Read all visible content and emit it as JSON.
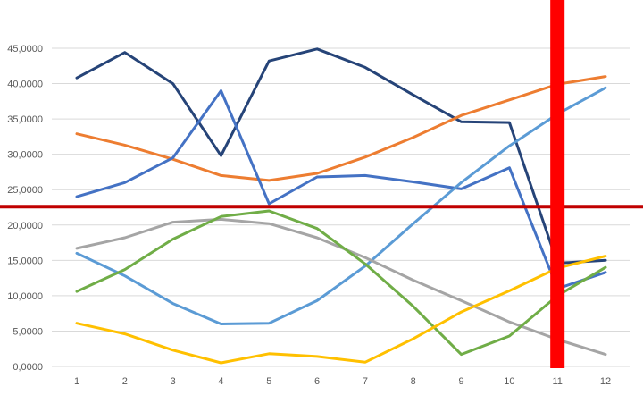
{
  "chart_data": {
    "type": "line",
    "title": "",
    "xlabel": "",
    "ylabel": "",
    "x": [
      "1",
      "2",
      "3",
      "4",
      "5",
      "6",
      "7",
      "8",
      "9",
      "10",
      "11",
      "12"
    ],
    "ylim": [
      0,
      45
    ],
    "yticks": [
      {
        "value": 0,
        "label": "0,0000"
      },
      {
        "value": 5,
        "label": "5,0000"
      },
      {
        "value": 10,
        "label": "10,0000"
      },
      {
        "value": 15,
        "label": "15,0000"
      },
      {
        "value": 20,
        "label": "20,0000"
      },
      {
        "value": 25,
        "label": "25,0000"
      },
      {
        "value": 30,
        "label": "30,0000"
      },
      {
        "value": 35,
        "label": "35,0000"
      },
      {
        "value": 40,
        "label": "40,0000"
      },
      {
        "value": 45,
        "label": "45,0000"
      }
    ],
    "grid": true,
    "legend": "none",
    "series": [
      {
        "color": "#264478",
        "values": [
          40.8,
          44.4,
          40.0,
          29.8,
          43.2,
          44.9,
          42.3,
          38.4,
          34.6,
          34.5,
          14.6,
          15.0
        ]
      },
      {
        "color": "#ED7D31",
        "values": [
          32.9,
          31.3,
          29.3,
          27.0,
          26.3,
          27.3,
          29.6,
          32.4,
          35.5,
          37.7,
          39.9,
          41.0
        ]
      },
      {
        "color": "#4472C4",
        "values": [
          24.0,
          26.0,
          29.5,
          39.0,
          23.0,
          26.8,
          27.0,
          26.1,
          25.1,
          28.1,
          11.0,
          13.3
        ]
      },
      {
        "color": "#5B9BD5",
        "values": [
          16.0,
          12.8,
          8.9,
          6.0,
          6.1,
          9.3,
          14.2,
          20.2,
          26.0,
          31.2,
          35.7,
          39.4
        ]
      },
      {
        "color": "#A5A5A5",
        "values": [
          16.7,
          18.2,
          20.4,
          20.8,
          20.2,
          18.2,
          15.4,
          12.2,
          9.3,
          6.3,
          3.8,
          1.7
        ]
      },
      {
        "color": "#70AD47",
        "values": [
          10.6,
          13.7,
          18.0,
          21.2,
          22.0,
          19.5,
          14.5,
          8.5,
          1.7,
          4.3,
          10.0,
          14.0
        ]
      },
      {
        "color": "#FFC000",
        "values": [
          6.1,
          4.6,
          2.3,
          0.5,
          1.8,
          1.4,
          0.6,
          3.9,
          7.7,
          10.7,
          13.9,
          15.6
        ]
      }
    ],
    "annotations": {
      "horizontal_line": {
        "y": 22.6,
        "color": "#C00000"
      },
      "vertical_band": {
        "x": "11",
        "color": "#FF0000"
      }
    }
  }
}
